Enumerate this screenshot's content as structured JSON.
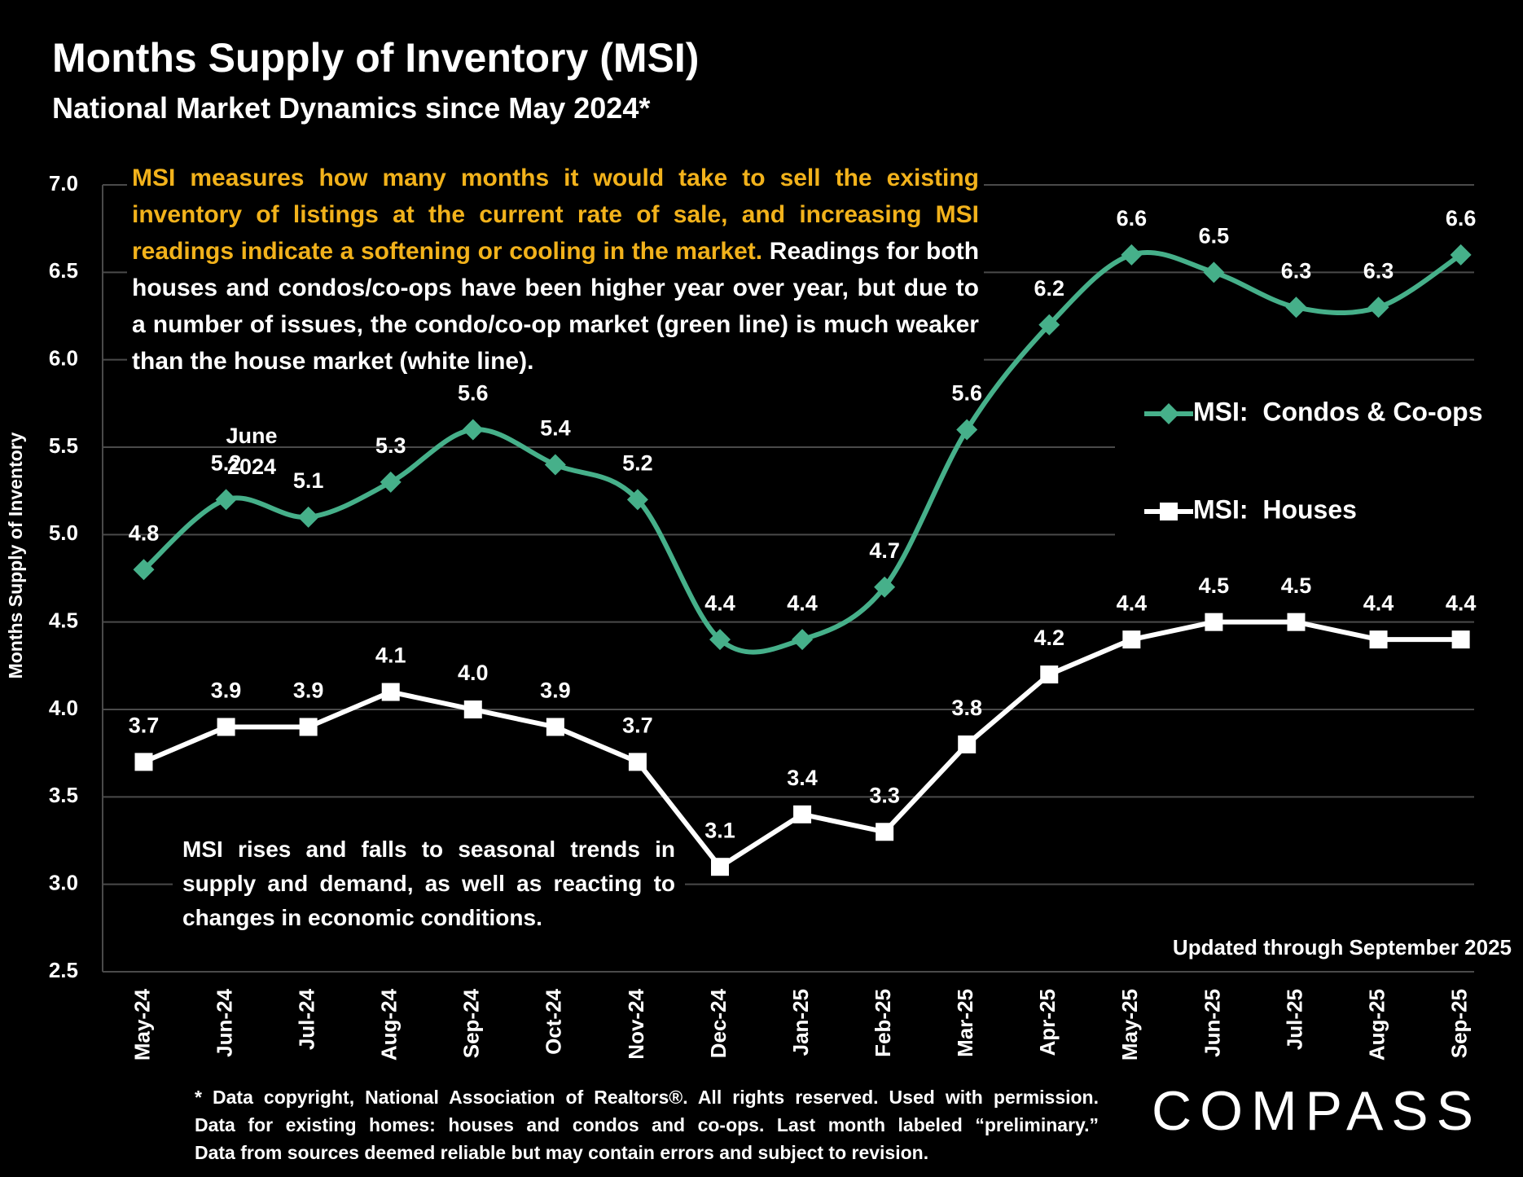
{
  "chart_data": {
    "type": "line",
    "title": "Months Supply of Inventory (MSI)",
    "subtitle": "National Market Dynamics since May 2024*",
    "y_label": "Months Supply of Inventory",
    "categories": [
      "May-24",
      "Jun-24",
      "Jul-24",
      "Aug-24",
      "Sep-24",
      "Oct-24",
      "Nov-24",
      "Dec-24",
      "Jan-25",
      "Feb-25",
      "Mar-25",
      "Apr-25",
      "May-25",
      "Jun-25",
      "Jul-25",
      "Aug-25",
      "Sep-25"
    ],
    "series": [
      {
        "name": "MSI:  Condos & Co-ops",
        "color": "#46b08a",
        "marker": "diamond",
        "smooth": true,
        "values": [
          4.8,
          5.2,
          5.1,
          5.3,
          5.6,
          5.4,
          5.2,
          4.4,
          4.4,
          4.7,
          5.6,
          6.2,
          6.6,
          6.5,
          6.3,
          6.3,
          6.6
        ],
        "value_labels": [
          "4.8",
          "5.2",
          "5.1",
          "5.3",
          "5.6",
          "5.4",
          "5.2",
          "4.4",
          "4.4",
          "4.7",
          "5.6",
          "6.2",
          "6.6",
          "6.5",
          "6.3",
          "6.3",
          "6.6"
        ]
      },
      {
        "name": "MSI:  Houses",
        "color": "#ffffff",
        "marker": "square",
        "smooth": false,
        "values": [
          3.7,
          3.9,
          3.9,
          4.1,
          4.0,
          3.9,
          3.7,
          3.1,
          3.4,
          3.3,
          3.8,
          4.2,
          4.4,
          4.5,
          4.5,
          4.4,
          4.4
        ],
        "value_labels": [
          "3.7",
          "3.9",
          "3.9",
          "4.1",
          "4.0",
          "3.9",
          "3.7",
          "3.1",
          "3.4",
          "3.3",
          "3.8",
          "4.2",
          "4.4",
          "4.5",
          "4.5",
          "4.4",
          "4.4"
        ]
      }
    ],
    "ylim": [
      2.5,
      7
    ],
    "yticks": [
      2.5,
      {
        "value": 3,
        "label": "3.0"
      },
      3.5,
      {
        "value": 4,
        "label": "4.0"
      },
      4.5,
      {
        "value": 5,
        "label": "5.0"
      },
      5.5,
      {
        "value": 6,
        "label": "6.0"
      },
      6.5,
      {
        "value": 7,
        "label": "7.0"
      }
    ],
    "grid": true,
    "legend_position": "right",
    "annotations": {
      "definition_highlight": "MSI measures how many months it would take to sell the existing inventory of listings at the current rate of sale, and increasing MSI readings indicate a softening or cooling in the market.",
      "definition_text": "Readings for both houses and condos/co-ops have been higher year over year, but due to a number of issues, the condo/co-op market (green line) is much weaker than the house market (white line).",
      "june": "June 2024",
      "seasonal": "MSI rises and falls to seasonal trends in supply and demand, as well as reacting to changes in economic conditions.",
      "updated": "Updated through September 2025"
    },
    "footnote": [
      "* Data copyright, National Association of Realtors®. All rights reserved. Used with permission.",
      "Data for existing homes: houses and condos and co-ops. Last month labeled “preliminary.”",
      "Data from sources deemed reliable but may contain errors and subject to revision."
    ],
    "logo": "COMPASS"
  }
}
